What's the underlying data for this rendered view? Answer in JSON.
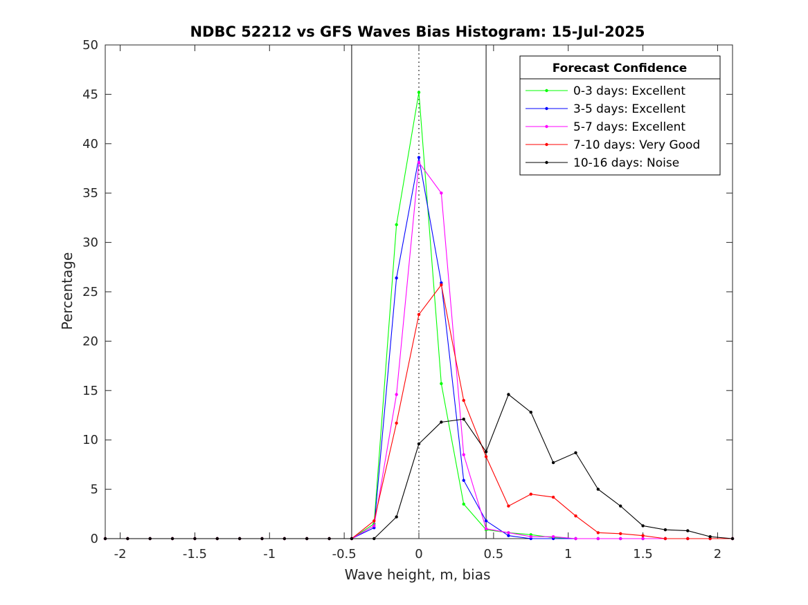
{
  "chart_data": {
    "type": "line",
    "title": "NDBC 52212 vs GFS Waves Bias Histogram: 15-Jul-2025",
    "xlabel": "Wave height, m, bias",
    "ylabel": "Percentage",
    "xlim": [
      -2.1,
      2.1
    ],
    "ylim": [
      0,
      50
    ],
    "xticks": [
      -2,
      -1.5,
      -1,
      -0.5,
      0,
      0.5,
      1,
      1.5,
      2
    ],
    "xtick_labels": [
      "-2",
      "-1.5",
      "-1",
      "-0.5",
      "0",
      "0.5",
      "1",
      "1.5",
      "2"
    ],
    "yticks": [
      0,
      5,
      10,
      15,
      20,
      25,
      30,
      35,
      40,
      45,
      50
    ],
    "ytick_labels": [
      "0",
      "5",
      "10",
      "15",
      "20",
      "25",
      "30",
      "35",
      "40",
      "45",
      "50"
    ],
    "grid": false,
    "reference_lines": {
      "solid_x": [
        -0.45,
        0.45
      ],
      "dotted_x": [
        0
      ]
    },
    "legend": {
      "title": "Forecast Confidence",
      "placement": "top-right"
    },
    "x": [
      -2.1,
      -1.95,
      -1.8,
      -1.65,
      -1.5,
      -1.35,
      -1.2,
      -1.05,
      -0.9,
      -0.75,
      -0.6,
      -0.45,
      -0.3,
      -0.15,
      0,
      0.15,
      0.3,
      0.45,
      0.6,
      0.75,
      0.9,
      1.05,
      1.2,
      1.35,
      1.5,
      1.65,
      1.8,
      1.95,
      2.1
    ],
    "series": [
      {
        "name": "0-3 days: Excellent",
        "color": "#00ff00",
        "values": [
          0,
          0,
          0,
          0,
          0,
          0,
          0,
          0,
          0,
          0,
          0,
          0,
          1.5,
          31.8,
          45.2,
          15.7,
          3.5,
          0.9,
          0.6,
          0.4,
          0.1,
          0,
          0,
          0,
          0,
          0,
          0,
          0,
          0
        ]
      },
      {
        "name": "3-5 days: Excellent",
        "color": "#0000ff",
        "values": [
          0,
          0,
          0,
          0,
          0,
          0,
          0,
          0,
          0,
          0,
          0,
          0,
          1.1,
          26.4,
          38.6,
          25.9,
          5.9,
          1.8,
          0.3,
          0,
          0,
          0,
          0,
          0,
          0,
          0,
          0,
          0,
          0
        ]
      },
      {
        "name": "5-7 days: Excellent",
        "color": "#ff00ff",
        "values": [
          0,
          0,
          0,
          0,
          0,
          0,
          0,
          0,
          0,
          0,
          0,
          0,
          1.3,
          14.6,
          38.1,
          35.0,
          8.5,
          1.0,
          0.6,
          0.2,
          0.2,
          0,
          0,
          0,
          0,
          0,
          0,
          0,
          0
        ]
      },
      {
        "name": "7-10 days: Very Good",
        "color": "#ff0000",
        "values": [
          0,
          0,
          0,
          0,
          0,
          0,
          0,
          0,
          0,
          0,
          0,
          0,
          1.8,
          11.7,
          22.7,
          25.7,
          14.0,
          8.3,
          3.3,
          4.5,
          4.2,
          2.3,
          0.6,
          0.5,
          0.3,
          0,
          0,
          0,
          0
        ]
      },
      {
        "name": "10-16 days: Noise",
        "color": "#000000",
        "values": [
          0,
          0,
          0,
          0,
          0,
          0,
          0,
          0,
          0,
          0,
          0,
          0,
          0,
          2.2,
          9.6,
          11.8,
          12.1,
          8.8,
          14.6,
          12.8,
          7.7,
          8.7,
          5.0,
          3.3,
          1.3,
          0.9,
          0.8,
          0.2,
          0
        ]
      }
    ]
  }
}
